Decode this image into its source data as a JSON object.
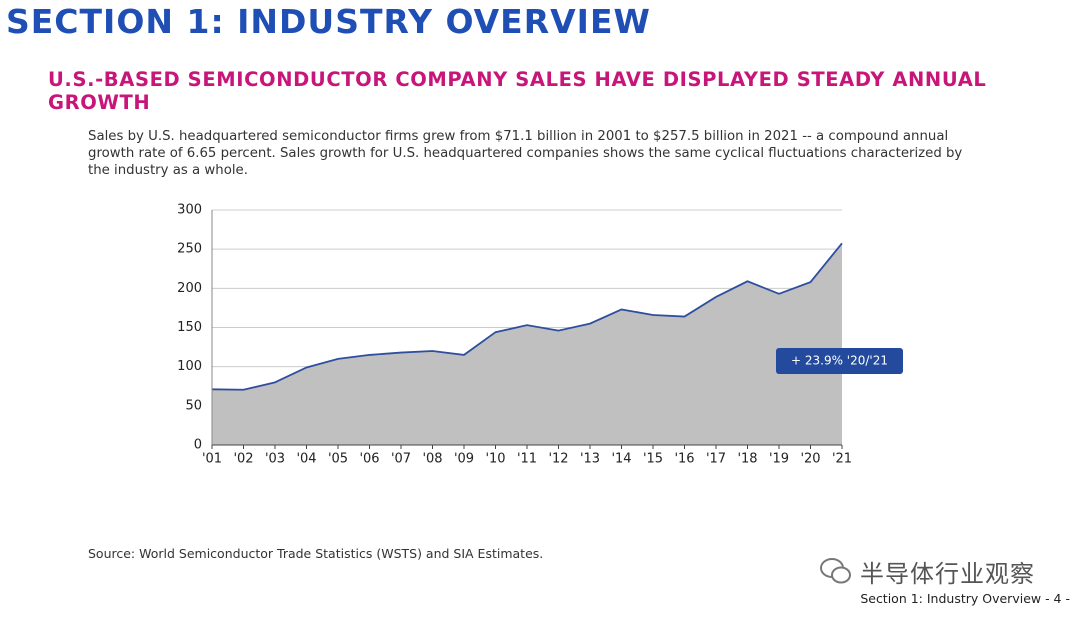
{
  "section_title": "SECTION 1: INDUSTRY OVERVIEW",
  "headline": "U.S.-BASED SEMICONDUCTOR COMPANY SALES HAVE DISPLAYED STEADY ANNUAL GROWTH",
  "description": "Sales by U.S. headquartered semiconductor firms grew from $71.1 billion in 2001 to $257.5 billion in 2021 -- a compound annual growth rate of 6.65 percent. Sales growth for U.S. headquartered companies shows the same cyclical fluctuations characterized by the industry as a whole.",
  "source": "Source: World Semiconductor Trade Statistics (WSTS) and SIA Estimates.",
  "footer": "Section 1: Industry Overview - 4 -",
  "watermark": "半导体行业观察",
  "chart_data": {
    "type": "area",
    "categories": [
      "'01",
      "'02",
      "'03",
      "'04",
      "'05",
      "'06",
      "'07",
      "'08",
      "'09",
      "'10",
      "'11",
      "'12",
      "'13",
      "'14",
      "'15",
      "'16",
      "'17",
      "'18",
      "'19",
      "'20",
      "'21"
    ],
    "values": [
      71.1,
      70.5,
      80,
      99,
      110,
      115,
      118,
      120,
      115,
      144,
      153,
      146,
      155,
      173,
      166,
      164,
      189,
      209,
      193,
      208,
      257.5
    ],
    "color": "#c0c0c0",
    "line_color": "#2e4f9e",
    "ylim": [
      0,
      300
    ],
    "yticks": [
      0,
      50,
      100,
      150,
      200,
      250,
      300
    ],
    "grid": true,
    "annotation": "+ 23.9% '20/'21",
    "annotation_color": "#234a9c"
  }
}
